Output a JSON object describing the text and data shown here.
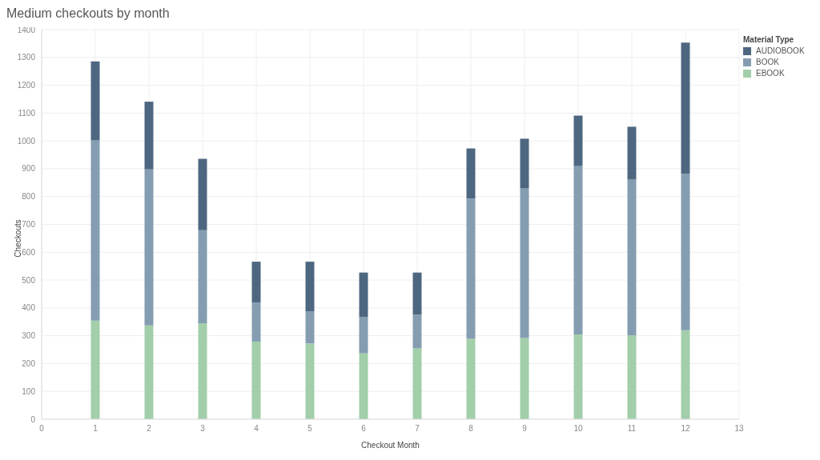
{
  "chart_data": {
    "type": "bar",
    "title": "Medium checkouts by month",
    "xlabel": "Checkout Month",
    "ylabel": "Checkouts",
    "legend_title": "Material Type",
    "stacked": true,
    "x": [
      1,
      2,
      3,
      4,
      5,
      6,
      7,
      8,
      9,
      10,
      11,
      12
    ],
    "series": [
      {
        "name": "EBOOK",
        "color": "#a2ceaa",
        "values": [
          354,
          337,
          345,
          279,
          272,
          237,
          255,
          289,
          292,
          305,
          301,
          320
        ]
      },
      {
        "name": "BOOK",
        "color": "#849db1",
        "values": [
          648,
          561,
          334,
          140,
          116,
          131,
          121,
          504,
          537,
          606,
          560,
          562
        ]
      },
      {
        "name": "AUDIOBOOK",
        "color": "#4e6781",
        "values": [
          284,
          243,
          257,
          147,
          178,
          159,
          151,
          180,
          179,
          180,
          190,
          471
        ]
      }
    ],
    "xlim": [
      0,
      13
    ],
    "xticks": [
      0,
      1,
      2,
      3,
      4,
      5,
      6,
      7,
      8,
      9,
      10,
      11,
      12,
      13
    ],
    "ylim": [
      0,
      1400
    ],
    "yticks": [
      0,
      100,
      200,
      300,
      400,
      500,
      600,
      700,
      800,
      900,
      1000,
      1100,
      1200,
      1300,
      1400
    ],
    "grid": true,
    "legend": "top right"
  }
}
